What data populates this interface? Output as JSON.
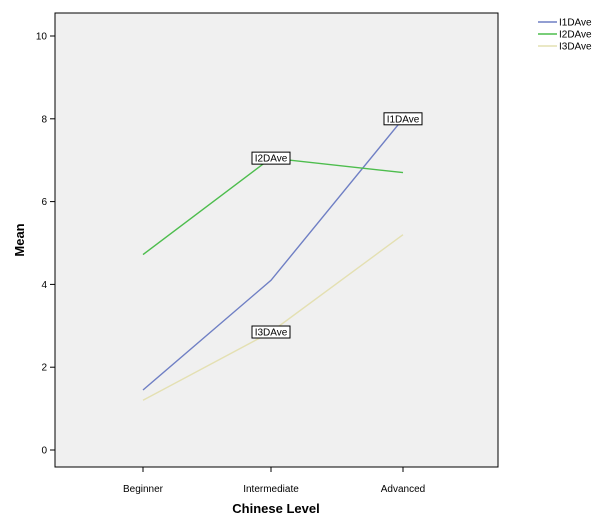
{
  "chart_data": {
    "type": "line",
    "title": "",
    "xlabel": "Chinese Level",
    "ylabel": "Mean",
    "categories": [
      "Beginner",
      "Intermediate",
      "Advanced"
    ],
    "ylim": [
      0,
      10
    ],
    "yticks": [
      "0",
      "2",
      "4",
      "6",
      "8",
      "10"
    ],
    "grid": false,
    "legend_position": "top-right",
    "series": [
      {
        "name": "I1DAve",
        "color": "#6f7fc4",
        "values": [
          1.45,
          4.1,
          8.0
        ],
        "inline_label": "I1DAve",
        "label_at": 2
      },
      {
        "name": "I2DAve",
        "color": "#4dbd4d",
        "values": [
          4.72,
          7.05,
          6.7
        ],
        "inline_label": "I2DAve",
        "label_at": 1
      },
      {
        "name": "I3DAve",
        "color": "#e4e0b2",
        "values": [
          1.2,
          2.85,
          5.2
        ],
        "inline_label": "I3DAve",
        "label_at": 1
      }
    ]
  }
}
